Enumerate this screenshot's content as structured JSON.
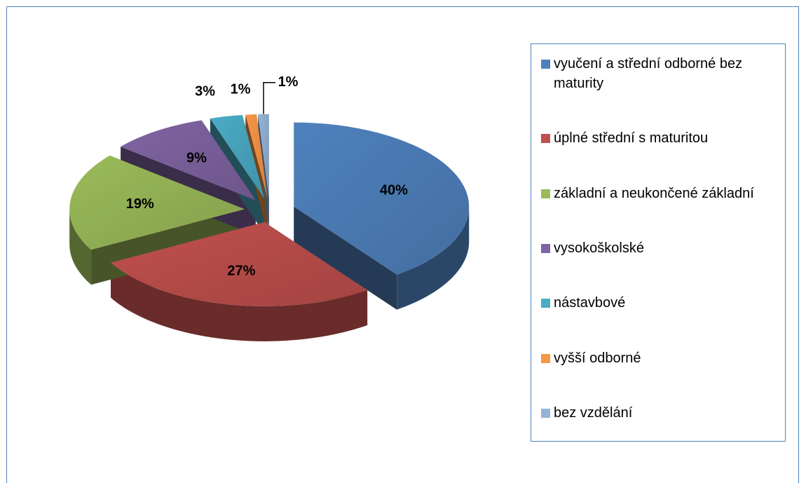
{
  "chart_data": {
    "type": "pie",
    "categories": [
      "vyučení a střední odborné bez maturity",
      "úplné střední s maturitou",
      "základní a neukončené základní",
      "vysokoškolské",
      "nástavbové",
      "vyšší odborné",
      "bez vzdělání"
    ],
    "values": [
      40,
      27,
      19,
      9,
      3,
      1,
      1
    ],
    "value_labels": [
      "40%",
      "27%",
      "19%",
      "9%",
      "3%",
      "1%",
      "1%"
    ],
    "colors": [
      "#4f81bd",
      "#c0504d",
      "#9bbb59",
      "#8064a2",
      "#4bacc6",
      "#f79646",
      "#95b3d7"
    ],
    "legend": "right"
  }
}
